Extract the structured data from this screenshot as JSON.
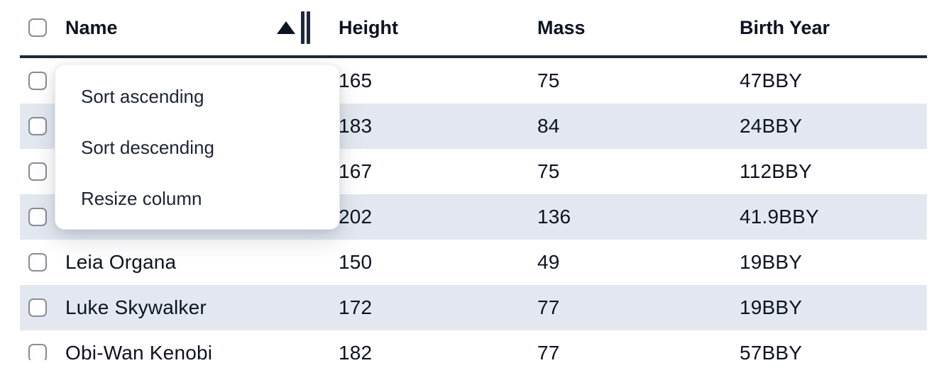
{
  "table": {
    "columns": [
      {
        "id": "select",
        "label": ""
      },
      {
        "id": "name",
        "label": "Name",
        "sorted": "ascending"
      },
      {
        "id": "height",
        "label": "Height"
      },
      {
        "id": "mass",
        "label": "Mass"
      },
      {
        "id": "birth_year",
        "label": "Birth Year"
      }
    ],
    "rows": [
      {
        "name": "",
        "height": "165",
        "mass": "75",
        "birth_year": "47BBY",
        "selected": false
      },
      {
        "name": "",
        "height": "183",
        "mass": "84",
        "birth_year": "24BBY",
        "selected": false
      },
      {
        "name": "",
        "height": "167",
        "mass": "75",
        "birth_year": "112BBY",
        "selected": false
      },
      {
        "name": "",
        "height": "202",
        "mass": "136",
        "birth_year": "41.9BBY",
        "selected": false
      },
      {
        "name": "Leia Organa",
        "height": "150",
        "mass": "49",
        "birth_year": "19BBY",
        "selected": false
      },
      {
        "name": "Luke Skywalker",
        "height": "172",
        "mass": "77",
        "birth_year": "19BBY",
        "selected": false
      },
      {
        "name": "Obi-Wan Kenobi",
        "height": "182",
        "mass": "77",
        "birth_year": "57BBY",
        "selected": false
      }
    ]
  },
  "menu": {
    "items": [
      "Sort ascending",
      "Sort descending",
      "Resize column"
    ]
  },
  "icons": {
    "sort_ascending_icon": "filled-up-triangle",
    "column_resize_icon": "double-vertical-bars",
    "checkbox_icon": "empty-rounded-square"
  },
  "colors": {
    "stripe": "#e3e8f0",
    "header_border": "#1e293b",
    "text": "#0d1321",
    "menu_text": "#1c2433",
    "menu_border": "#e7e8ec",
    "menu_background": "#ffffff",
    "checkbox_border": "#878d96",
    "resize_handle": "#1e293b",
    "sort_arrow": "#0d1321"
  }
}
